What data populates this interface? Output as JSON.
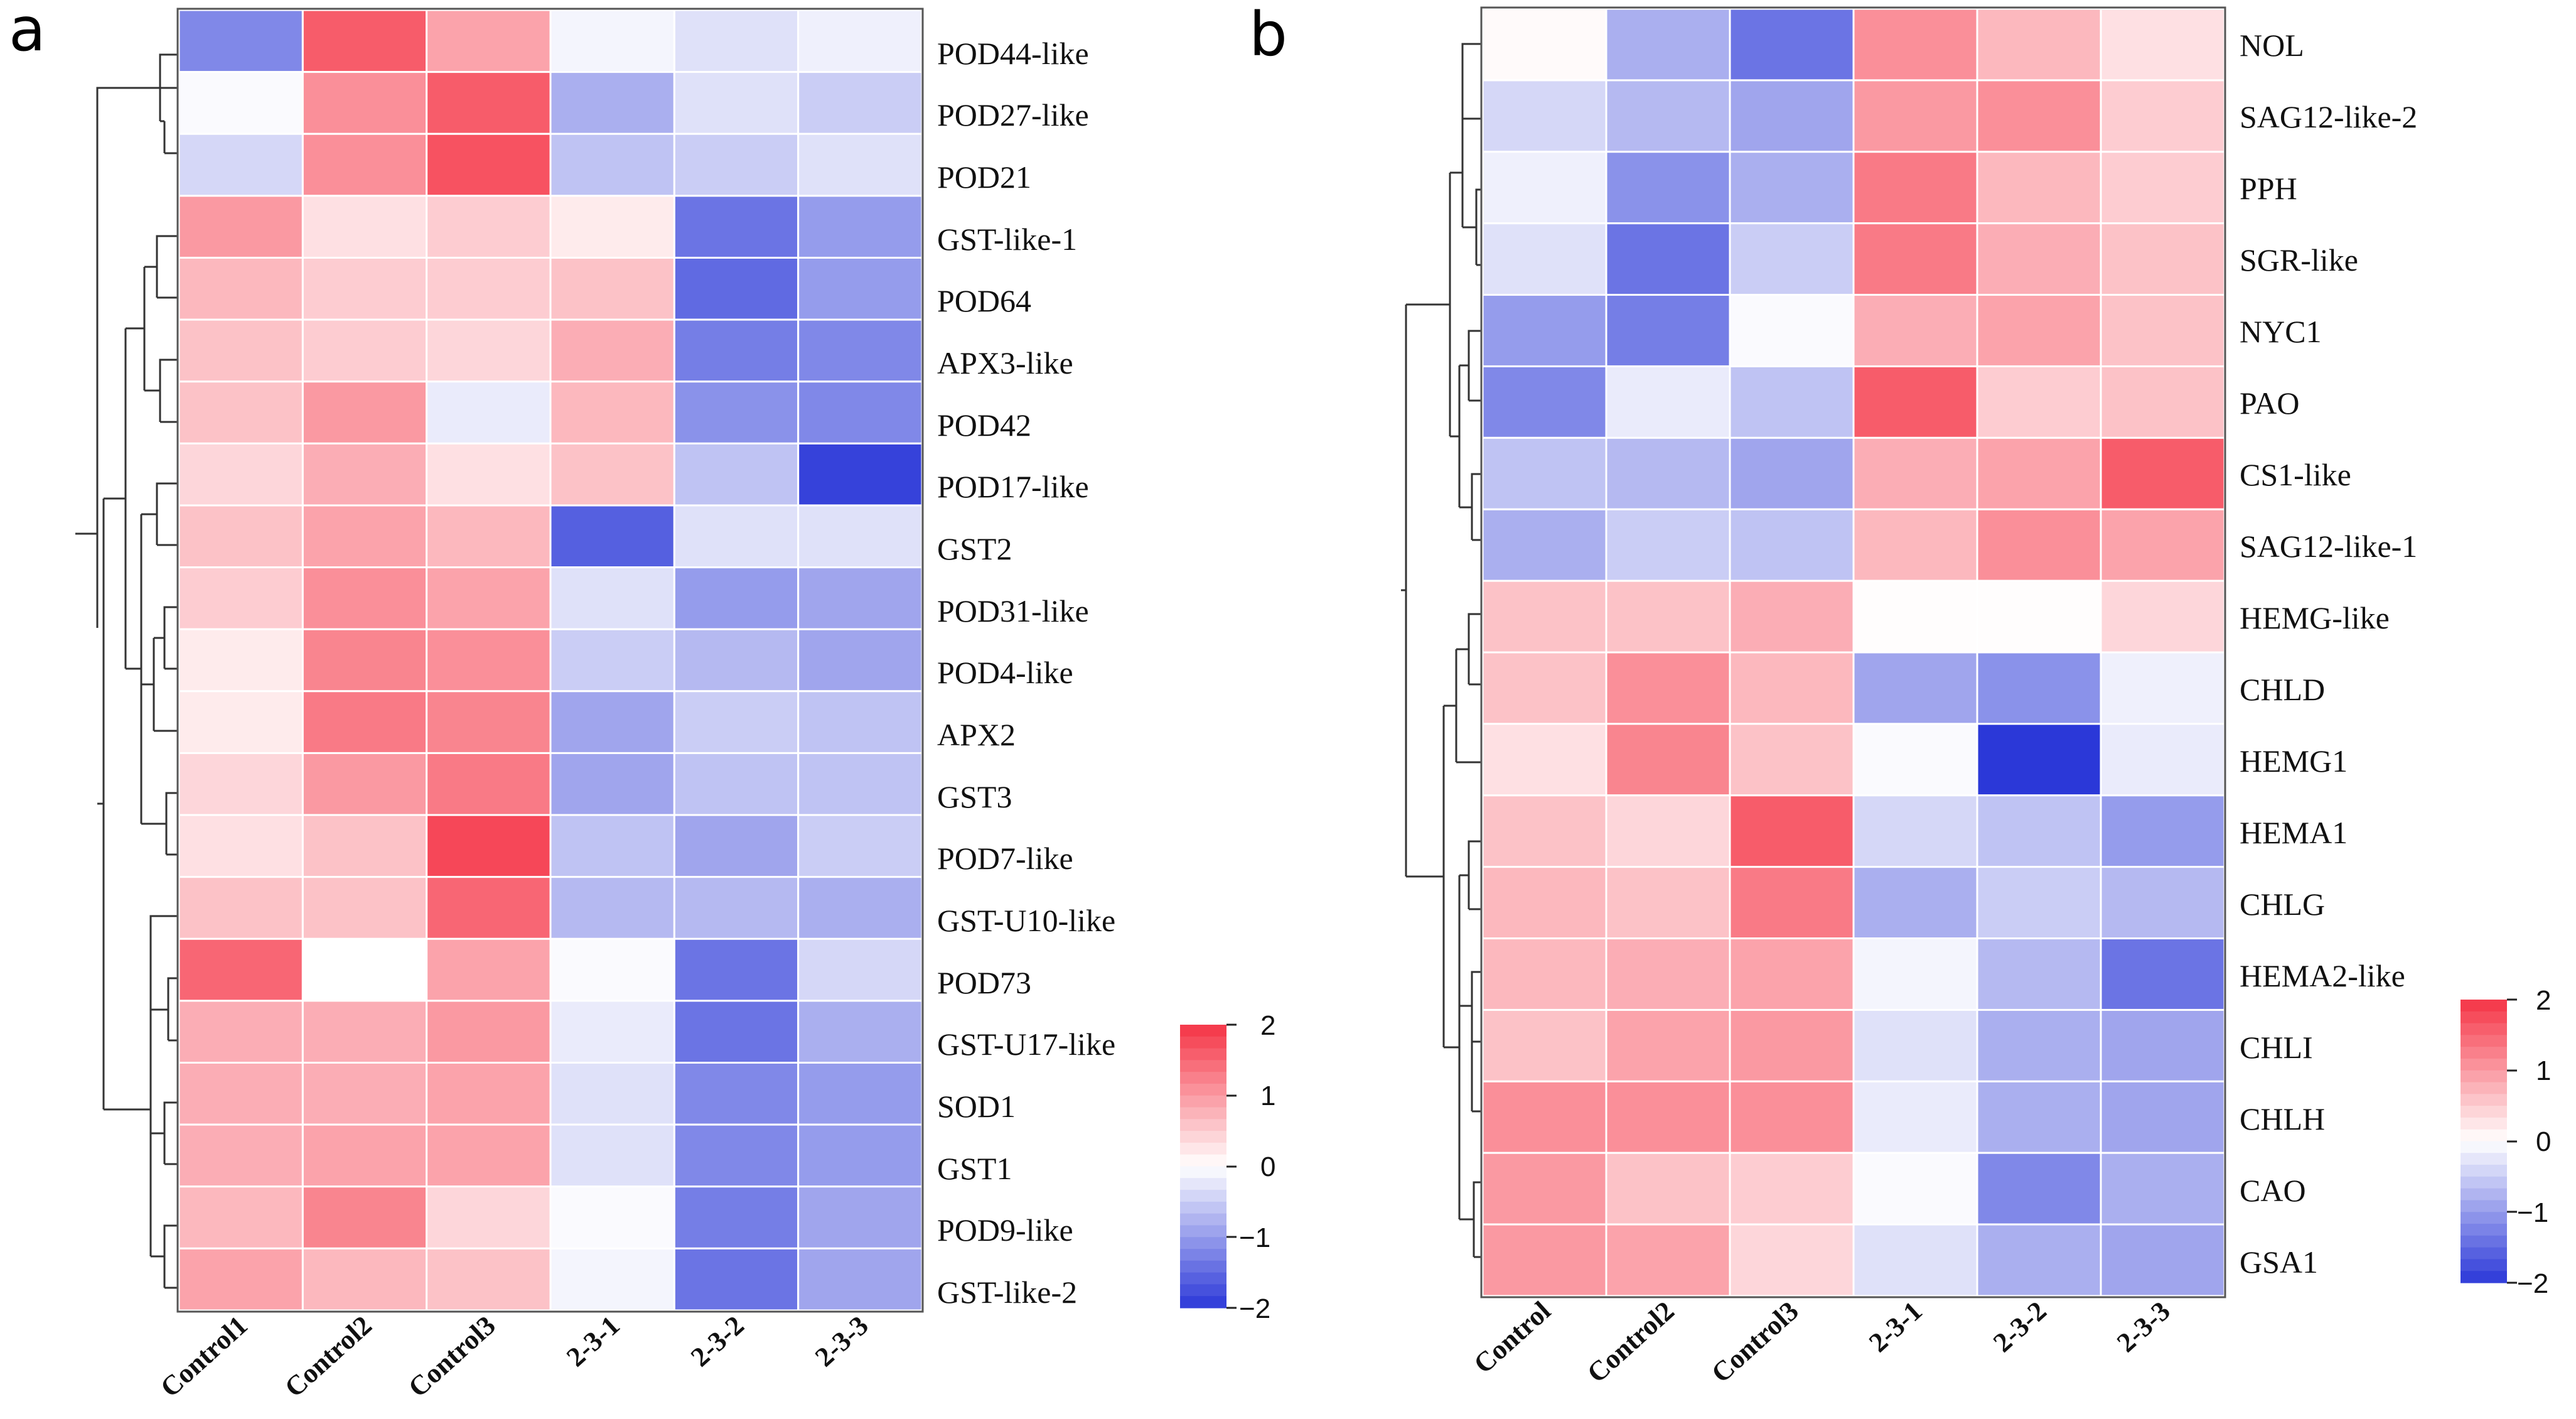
{
  "chart_data": [
    {
      "type": "heatmap",
      "panel_label": "a",
      "columns": [
        "Control1",
        "Control2",
        "Control3",
        "2-3-1",
        "2-3-2",
        "2-3-3"
      ],
      "rows": [
        "POD44-like",
        "POD27-like",
        "POD21",
        "GST-like-1",
        "POD64",
        "APX3-like",
        "POD42",
        "POD17-like",
        "GST2",
        "POD31-like",
        "POD4-like",
        "APX2",
        "GST3",
        "POD7-like",
        "GST-U10-like",
        "POD73",
        "GST-U17-like",
        "SOD1",
        "GST1",
        "POD9-like",
        "GST-like-2"
      ],
      "values": [
        [
          -1.2,
          1.6,
          0.9,
          -0.1,
          -0.3,
          -0.15
        ],
        [
          -0.05,
          1.1,
          1.6,
          -0.8,
          -0.3,
          -0.5
        ],
        [
          -0.4,
          1.1,
          1.7,
          -0.6,
          -0.5,
          -0.3
        ],
        [
          1.0,
          0.3,
          0.5,
          0.2,
          -1.4,
          -1.0
        ],
        [
          0.7,
          0.5,
          0.5,
          0.6,
          -1.5,
          -1.0
        ],
        [
          0.6,
          0.5,
          0.4,
          0.8,
          -1.3,
          -1.2
        ],
        [
          0.6,
          1.0,
          -0.2,
          0.7,
          -1.1,
          -1.2
        ],
        [
          0.4,
          0.8,
          0.3,
          0.6,
          -0.6,
          -1.9
        ],
        [
          0.6,
          0.9,
          0.7,
          -1.6,
          -0.3,
          -0.3
        ],
        [
          0.5,
          1.1,
          0.9,
          -0.3,
          -1.0,
          -0.9
        ],
        [
          0.2,
          1.2,
          1.1,
          -0.5,
          -0.7,
          -0.9
        ],
        [
          0.2,
          1.3,
          1.2,
          -0.9,
          -0.5,
          -0.6
        ],
        [
          0.4,
          1.0,
          1.3,
          -0.9,
          -0.6,
          -0.6
        ],
        [
          0.3,
          0.6,
          1.8,
          -0.6,
          -0.9,
          -0.5
        ],
        [
          0.6,
          0.6,
          1.5,
          -0.7,
          -0.7,
          -0.8
        ],
        [
          1.5,
          0.0,
          0.9,
          -0.05,
          -1.4,
          -0.4
        ],
        [
          0.8,
          0.8,
          1.0,
          -0.2,
          -1.4,
          -0.8
        ],
        [
          0.8,
          0.8,
          0.9,
          -0.3,
          -1.2,
          -1.0
        ],
        [
          0.8,
          0.9,
          0.9,
          -0.3,
          -1.2,
          -1.0
        ],
        [
          0.7,
          1.2,
          0.4,
          -0.05,
          -1.3,
          -0.9
        ],
        [
          0.9,
          0.7,
          0.6,
          -0.1,
          -1.4,
          -0.9
        ]
      ],
      "colorbar": {
        "ticks": [
          "2",
          "1",
          "0",
          "−1",
          "−2"
        ],
        "range": [
          -2,
          2
        ]
      },
      "colors": {
        "low": "#2b38d8",
        "mid": "#ffffff",
        "high": "#f53345"
      }
    },
    {
      "type": "heatmap",
      "panel_label": "b",
      "columns": [
        "Control",
        "Control2",
        "Control3",
        "2-3-1",
        "2-3-2",
        "2-3-3"
      ],
      "rows": [
        "NOL",
        "SAG12-like-2",
        "PPH",
        "SGR-like",
        "NYC1",
        "PAO",
        "CS1-like",
        "SAG12-like-1",
        "HEMG-like",
        "CHLD",
        "HEMG1",
        "HEMA1",
        "CHLG",
        "HEMA2-like",
        "CHLI",
        "CHLH",
        "CAO",
        "GSA1"
      ],
      "values": [
        [
          0.05,
          -0.8,
          -1.4,
          1.1,
          0.7,
          0.3
        ],
        [
          -0.4,
          -0.7,
          -0.9,
          1.0,
          1.1,
          0.5
        ],
        [
          -0.15,
          -1.1,
          -0.8,
          1.3,
          0.7,
          0.5
        ],
        [
          -0.3,
          -1.4,
          -0.5,
          1.3,
          0.8,
          0.6
        ],
        [
          -1.0,
          -1.3,
          -0.05,
          0.8,
          0.9,
          0.6
        ],
        [
          -1.2,
          -0.2,
          -0.6,
          1.6,
          0.5,
          0.6
        ],
        [
          -0.6,
          -0.7,
          -0.9,
          0.8,
          0.9,
          1.6
        ],
        [
          -0.8,
          -0.5,
          -0.6,
          0.7,
          1.1,
          0.9
        ],
        [
          0.6,
          0.6,
          0.8,
          0.02,
          0.02,
          0.4
        ],
        [
          0.6,
          1.1,
          0.7,
          -0.9,
          -1.1,
          -0.15
        ],
        [
          0.3,
          1.2,
          0.6,
          -0.05,
          -2.0,
          -0.2
        ],
        [
          0.6,
          0.4,
          1.6,
          -0.4,
          -0.6,
          -1.0
        ],
        [
          0.7,
          0.6,
          1.3,
          -0.8,
          -0.5,
          -0.7
        ],
        [
          0.7,
          0.8,
          0.9,
          -0.1,
          -0.7,
          -1.4
        ],
        [
          0.6,
          0.9,
          1.0,
          -0.3,
          -0.8,
          -0.9
        ],
        [
          1.1,
          1.1,
          1.1,
          -0.2,
          -0.8,
          -0.9
        ],
        [
          1.0,
          0.6,
          0.5,
          -0.05,
          -1.2,
          -0.8
        ],
        [
          1.0,
          0.9,
          0.4,
          -0.3,
          -0.8,
          -0.9
        ]
      ],
      "colorbar": {
        "ticks": [
          "2",
          "1",
          "0",
          "−1",
          "−2"
        ],
        "range": [
          -2,
          2
        ]
      },
      "colors": {
        "low": "#2b38d8",
        "mid": "#ffffff",
        "high": "#f53345"
      }
    }
  ]
}
